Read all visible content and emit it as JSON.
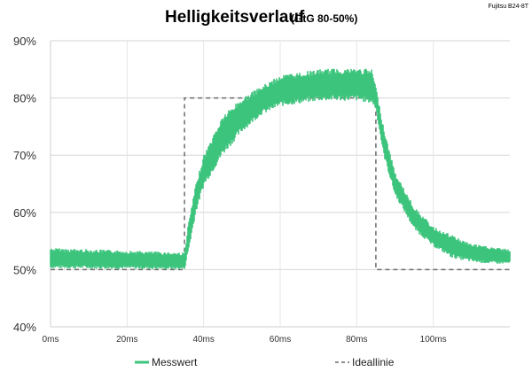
{
  "chart_data": {
    "type": "line",
    "title": "Helligkeitsverlauf",
    "subtitle": "(GtG 80-50%)",
    "brand_label": "Fujitsu B24-8T",
    "xlabel": "",
    "ylabel": "",
    "xlim": [
      0,
      120
    ],
    "ylim": [
      40,
      90
    ],
    "x_ticks": [
      0,
      20,
      40,
      60,
      80,
      100
    ],
    "x_tick_labels": [
      "0ms",
      "20ms",
      "40ms",
      "60ms",
      "80ms",
      "100ms"
    ],
    "y_ticks": [
      40,
      50,
      60,
      70,
      80,
      90
    ],
    "y_tick_labels": [
      "40%",
      "50%",
      "60%",
      "70%",
      "80%",
      "90%"
    ],
    "grid": true,
    "legend_position": "bottom",
    "series": [
      {
        "name": "Messwert",
        "color": "#3cc47c",
        "style": "noisy-band",
        "points": [
          {
            "x": 0,
            "low": 50.2,
            "high": 53.8
          },
          {
            "x": 35,
            "low": 50.0,
            "high": 53.0
          },
          {
            "x": 36,
            "low": 53.0,
            "high": 58.0
          },
          {
            "x": 38,
            "low": 60.0,
            "high": 65.0
          },
          {
            "x": 40,
            "low": 64.5,
            "high": 70.0
          },
          {
            "x": 45,
            "low": 70.0,
            "high": 77.0
          },
          {
            "x": 50,
            "low": 74.0,
            "high": 80.0
          },
          {
            "x": 55,
            "low": 77.0,
            "high": 82.0
          },
          {
            "x": 60,
            "low": 78.5,
            "high": 84.0
          },
          {
            "x": 65,
            "low": 79.0,
            "high": 84.5
          },
          {
            "x": 70,
            "low": 79.5,
            "high": 85.0
          },
          {
            "x": 75,
            "low": 79.5,
            "high": 85.2
          },
          {
            "x": 80,
            "low": 79.5,
            "high": 85.2
          },
          {
            "x": 84,
            "low": 79.0,
            "high": 85.0
          },
          {
            "x": 85,
            "low": 78.0,
            "high": 82.0
          },
          {
            "x": 87,
            "low": 70.0,
            "high": 75.0
          },
          {
            "x": 90,
            "low": 63.0,
            "high": 67.0
          },
          {
            "x": 95,
            "low": 57.0,
            "high": 61.0
          },
          {
            "x": 100,
            "low": 54.0,
            "high": 57.5
          },
          {
            "x": 105,
            "low": 52.0,
            "high": 56.0
          },
          {
            "x": 110,
            "low": 51.3,
            "high": 54.5
          },
          {
            "x": 115,
            "low": 51.0,
            "high": 54.0
          },
          {
            "x": 120,
            "low": 51.0,
            "high": 53.5
          }
        ]
      },
      {
        "name": "Ideallinie",
        "color": "#6b6b6b",
        "style": "dashed",
        "points": [
          {
            "x": 0,
            "y": 50
          },
          {
            "x": 35,
            "y": 50
          },
          {
            "x": 35,
            "y": 80
          },
          {
            "x": 85,
            "y": 80
          },
          {
            "x": 85,
            "y": 50
          },
          {
            "x": 120,
            "y": 50
          }
        ]
      }
    ]
  }
}
